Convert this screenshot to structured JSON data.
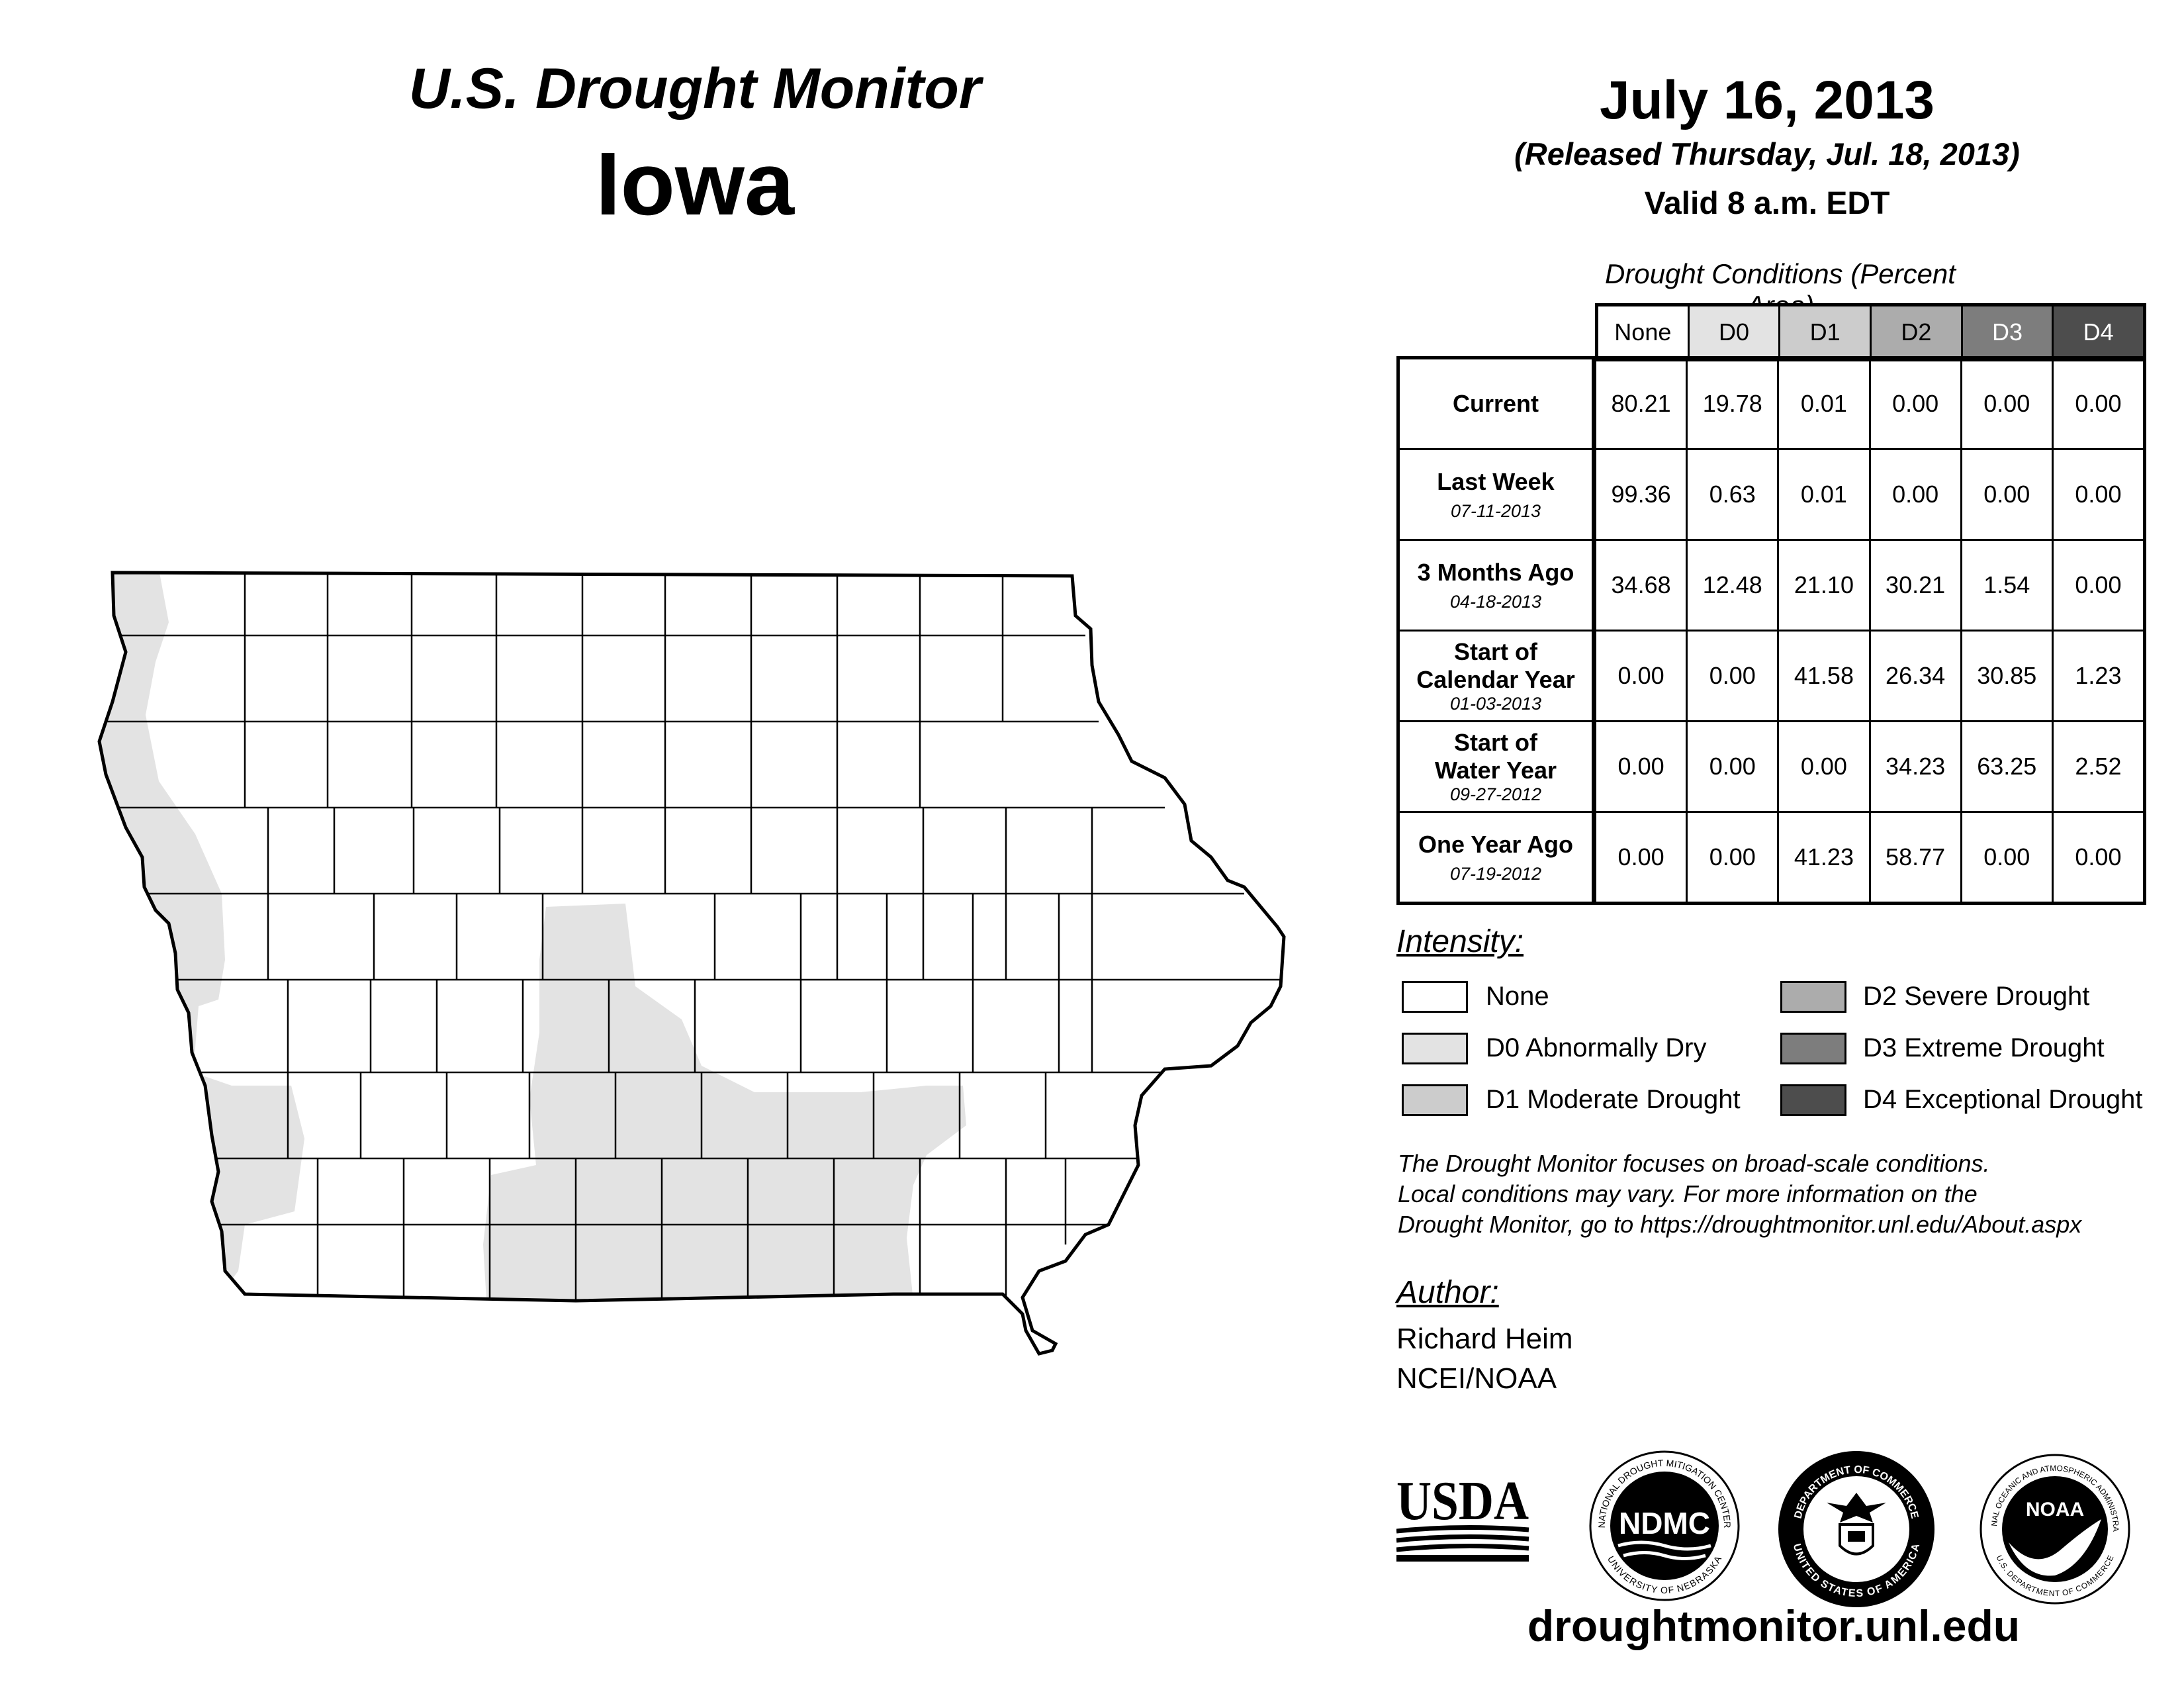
{
  "header": {
    "subtitle": "U.S. Drought Monitor",
    "title": "Iowa",
    "date": "July 16, 2013",
    "released": "(Released Thursday, Jul. 18, 2013)",
    "valid": "Valid 8 a.m. EDT"
  },
  "table": {
    "caption": "Drought Conditions (Percent Area)",
    "columns": [
      "None",
      "D0",
      "D1",
      "D2",
      "D3",
      "D4"
    ],
    "rows": [
      {
        "label": "Current",
        "date": "",
        "values": [
          "80.21",
          "19.78",
          "0.01",
          "0.00",
          "0.00",
          "0.00"
        ]
      },
      {
        "label": "Last Week",
        "date": "07-11-2013",
        "values": [
          "99.36",
          "0.63",
          "0.01",
          "0.00",
          "0.00",
          "0.00"
        ]
      },
      {
        "label": "3 Months Ago",
        "date": "04-18-2013",
        "values": [
          "34.68",
          "12.48",
          "21.10",
          "30.21",
          "1.54",
          "0.00"
        ]
      },
      {
        "label_line1": "Start of",
        "label_line2": "Calendar Year",
        "date": "01-03-2013",
        "values": [
          "0.00",
          "0.00",
          "41.58",
          "26.34",
          "30.85",
          "1.23"
        ]
      },
      {
        "label_line1": "Start of",
        "label_line2": "Water Year",
        "date": "09-27-2012",
        "values": [
          "0.00",
          "0.00",
          "0.00",
          "34.23",
          "63.25",
          "2.52"
        ]
      },
      {
        "label": "One Year Ago",
        "date": "07-19-2012",
        "values": [
          "0.00",
          "0.00",
          "41.23",
          "58.77",
          "0.00",
          "0.00"
        ]
      }
    ]
  },
  "legend": {
    "title": "Intensity:",
    "items": [
      {
        "label": "None",
        "color": "#ffffff"
      },
      {
        "label": "D0 Abnormally Dry",
        "color": "#e3e3e3"
      },
      {
        "label": "D1 Moderate Drought",
        "color": "#cccccc"
      },
      {
        "label": "D2 Severe Drought",
        "color": "#acacac"
      },
      {
        "label": "D3 Extreme Drought",
        "color": "#7d7d7d"
      },
      {
        "label": "D4 Exceptional Drought",
        "color": "#4d4d4d"
      }
    ]
  },
  "note": {
    "line1": "The Drought Monitor focuses on broad-scale conditions.",
    "line2": "Local conditions may vary. For more information on the",
    "line3": "Drought Monitor, go to https://droughtmonitor.unl.edu/About.aspx"
  },
  "author": {
    "title": "Author:",
    "name": "Richard Heim",
    "org": "NCEI/NOAA"
  },
  "logos": {
    "usda": "USDA",
    "ndmc": "NDMC",
    "ndmc_ring_top": "NATIONAL DROUGHT MITIGATION CENTER",
    "ndmc_ring_bottom": "UNIVERSITY OF NEBRASKA",
    "doc_ring_top": "DEPARTMENT OF COMMERCE",
    "doc_ring_bottom": "UNITED STATES OF AMERICA",
    "noaa": "NOAA",
    "noaa_ring_top": "NATIONAL OCEANIC AND ATMOSPHERIC ADMINISTRATION",
    "noaa_ring_bottom": "U.S. DEPARTMENT OF COMMERCE"
  },
  "website": "droughtmonitor.unl.edu",
  "map": {
    "state": "Iowa",
    "drought_area_category": "D0",
    "drought_area_color": "#e3e3e3",
    "drought_areas": [
      "western border strip",
      "south-central region"
    ]
  }
}
